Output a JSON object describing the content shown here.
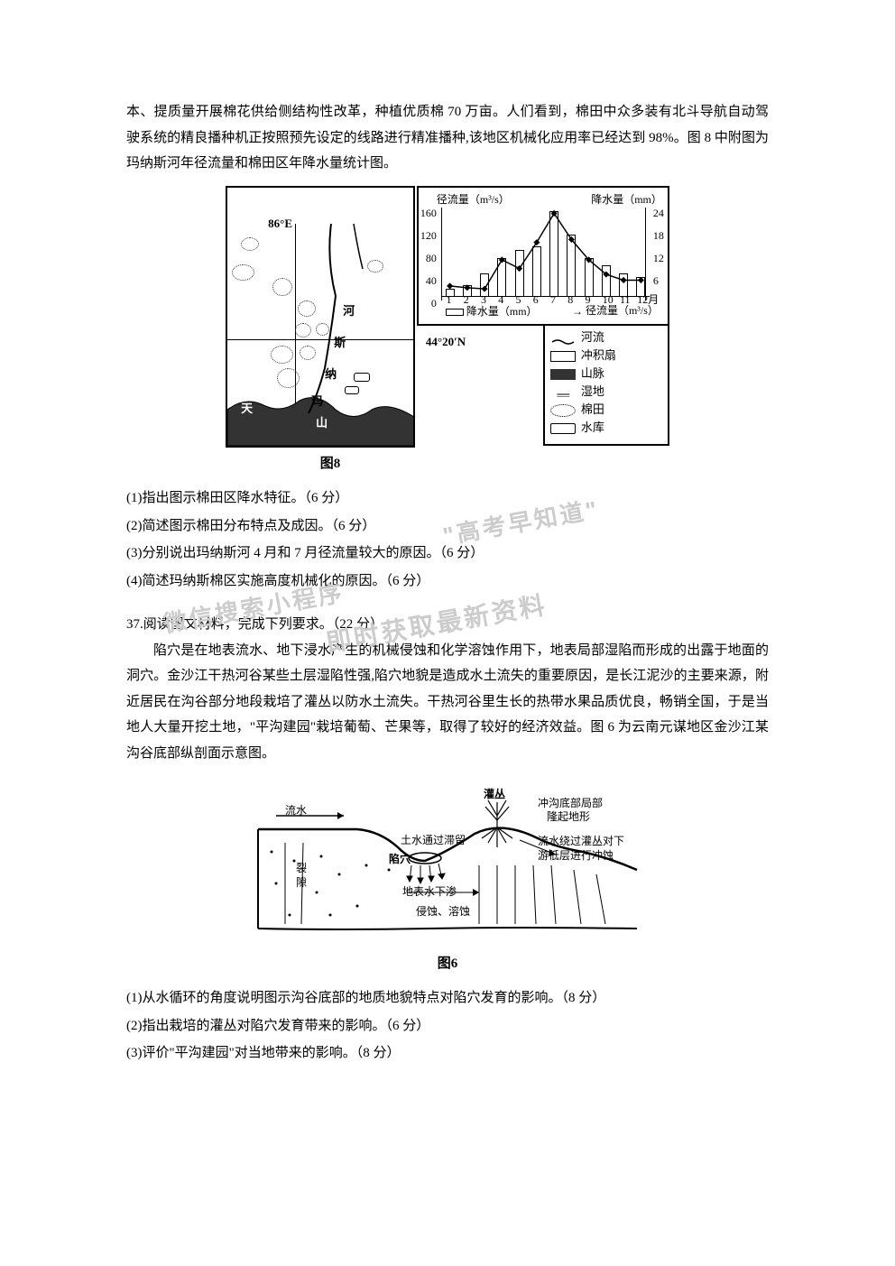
{
  "intro_paragraph": "本、提质量开展棉花供给侧结构性改革，种植优质棉 70 万亩。人们看到，棉田中众多装有北斗导航自动驾驶系统的精良播种机正按照预先设定的线路进行精准播种,该地区机械化应用率已经达到 98%。图 8 中附图为玛纳斯河年径流量和棉田区年降水量统计图。",
  "figure8": {
    "map": {
      "longitude_label": "86°E",
      "latitude_label": "44°20′N",
      "mountain_label": "天",
      "hillslope_label": "山",
      "river_chars": [
        "河",
        "斯",
        "纳",
        "玛"
      ]
    },
    "chart": {
      "y1_title": "径流量（m³/s）",
      "y2_title": "降水量（mm）",
      "y1_max": 160,
      "y2_max": 24,
      "y1_ticks": [
        0,
        40,
        80,
        120,
        160
      ],
      "y2_ticks": [
        6,
        12,
        18,
        24
      ],
      "x_ticks": [
        "1",
        "2",
        "3",
        "4",
        "5",
        "6",
        "7",
        "8",
        "9",
        "10",
        "11",
        "12月"
      ],
      "legend_bar": "降水量（mm）",
      "legend_line": "径流量（m³/s）",
      "precipitation": [
        2,
        3,
        6,
        10,
        12,
        13,
        22,
        16,
        10,
        8,
        6,
        5
      ],
      "runoff": [
        25,
        22,
        20,
        70,
        55,
        100,
        150,
        105,
        70,
        45,
        35,
        35
      ]
    },
    "legend": {
      "items": [
        {
          "label": "河流",
          "type": "river"
        },
        {
          "label": "冲积扇",
          "type": "fan"
        },
        {
          "label": "山脉",
          "type": "mountain"
        },
        {
          "label": "湿地",
          "type": "wetland"
        },
        {
          "label": "棉田",
          "type": "cotton"
        },
        {
          "label": "水库",
          "type": "reservoir"
        }
      ]
    },
    "caption": "图8"
  },
  "q36": {
    "q1": "(1)指出图示棉田区降水特征。（6 分）",
    "q2": "(2)简述图示棉田分布特点及成因。（6 分）",
    "q3": "(3)分别说出玛纳斯河 4 月和 7 月径流量较大的原因。（6 分）",
    "q4": "(4)简述玛纳斯棉区实施高度机械化的原因。（6 分）"
  },
  "q37": {
    "heading": "37.阅读图文材料，完成下列要求。（22 分）",
    "paragraph": "陷穴是在地表流水、地下浸水产生的机械侵蚀和化学溶蚀作用下，地表局部湿陷而形成的出露于地面的洞穴。金沙江干热河谷某些土层湿陷性强,陷穴地貌是造成水土流失的重要原因，是长江泥沙的主要来源，附近居民在沟谷部分地段栽培了灌丛以防水土流失。干热河谷里生长的热带水果品质优良，畅销全国，于是当地人大量开挖土地，\"平沟建园\"栽培葡萄、芒果等，取得了较好的经济效益。图 6 为云南元谋地区金沙江某沟谷底部纵剖面示意图。",
    "figure6": {
      "caption": "图6",
      "labels": {
        "flow": "流水",
        "shrub": "灌丛",
        "basin_note1": "冲沟底部局部",
        "basin_note2": "隆起地形",
        "note3": "流水绕过灌丛对下",
        "note4": "游低层进行冲蚀",
        "pit": "陷穴",
        "stay": "土水通过滞留",
        "crack1": "裂",
        "crack2": "隙",
        "underground": "地表水下渗",
        "slow": "侵蚀、溶蚀"
      }
    },
    "q1": "(1)从水循环的角度说明图示沟谷底部的地质地貌特点对陷穴发育的影响。（8 分）",
    "q2": "(2)指出栽培的灌丛对陷穴发育带来的影响。（6 分）",
    "q3": "(3)评价\"平沟建园\"对当地带来的影响。（8 分）"
  },
  "watermarks": {
    "w1": "\"高考早知道\"",
    "w2": "微信搜索小程序",
    "w3": "即时获取最新资料"
  }
}
